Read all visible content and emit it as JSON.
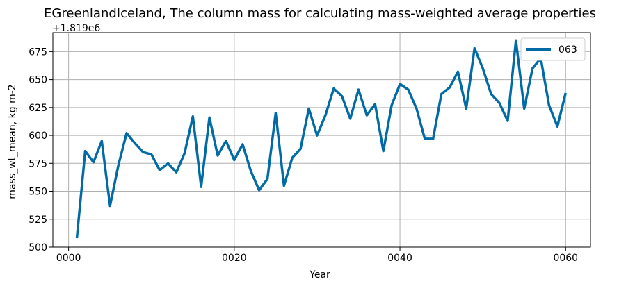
{
  "chart_data": {
    "type": "line",
    "title": "EGreenlandIceland, The column mass for calculating mass-weighted average properties",
    "xlabel": "Year",
    "ylabel": "mass_wt_mean, kg m-2",
    "y_offset_label": "+1.819e6",
    "xlim": [
      -1.9,
      63
    ],
    "ylim": [
      500,
      692
    ],
    "x_ticks": [
      0,
      20,
      40,
      60
    ],
    "x_tick_labels": [
      "0000",
      "0020",
      "0040",
      "0060"
    ],
    "y_ticks": [
      500,
      525,
      550,
      575,
      600,
      625,
      650,
      675
    ],
    "y_tick_labels": [
      "500",
      "525",
      "550",
      "575",
      "600",
      "625",
      "650",
      "675"
    ],
    "grid": true,
    "legend_position": "top-right",
    "series": [
      {
        "name": "063",
        "color": "#006ba4",
        "x": [
          1,
          2,
          3,
          4,
          5,
          6,
          7,
          8,
          9,
          10,
          11,
          12,
          13,
          14,
          15,
          16,
          17,
          18,
          19,
          20,
          21,
          22,
          23,
          24,
          25,
          26,
          27,
          28,
          29,
          30,
          31,
          32,
          33,
          34,
          35,
          36,
          37,
          38,
          39,
          40,
          41,
          42,
          43,
          44,
          45,
          46,
          47,
          48,
          49,
          50,
          51,
          52,
          53,
          54,
          55,
          56,
          57,
          58,
          59,
          60
        ],
        "values": [
          508,
          586,
          576,
          595,
          537,
          573,
          602,
          593,
          585,
          583,
          569,
          575,
          567,
          584,
          617,
          554,
          616,
          582,
          595,
          578,
          592,
          568,
          551,
          561,
          620,
          555,
          580,
          588,
          624,
          600,
          618,
          642,
          635,
          615,
          641,
          618,
          628,
          586,
          627,
          646,
          641,
          624,
          597,
          597,
          637,
          643,
          657,
          624,
          678,
          660,
          637,
          629,
          613,
          685,
          624,
          660,
          669,
          627,
          608,
          638
        ]
      }
    ]
  }
}
